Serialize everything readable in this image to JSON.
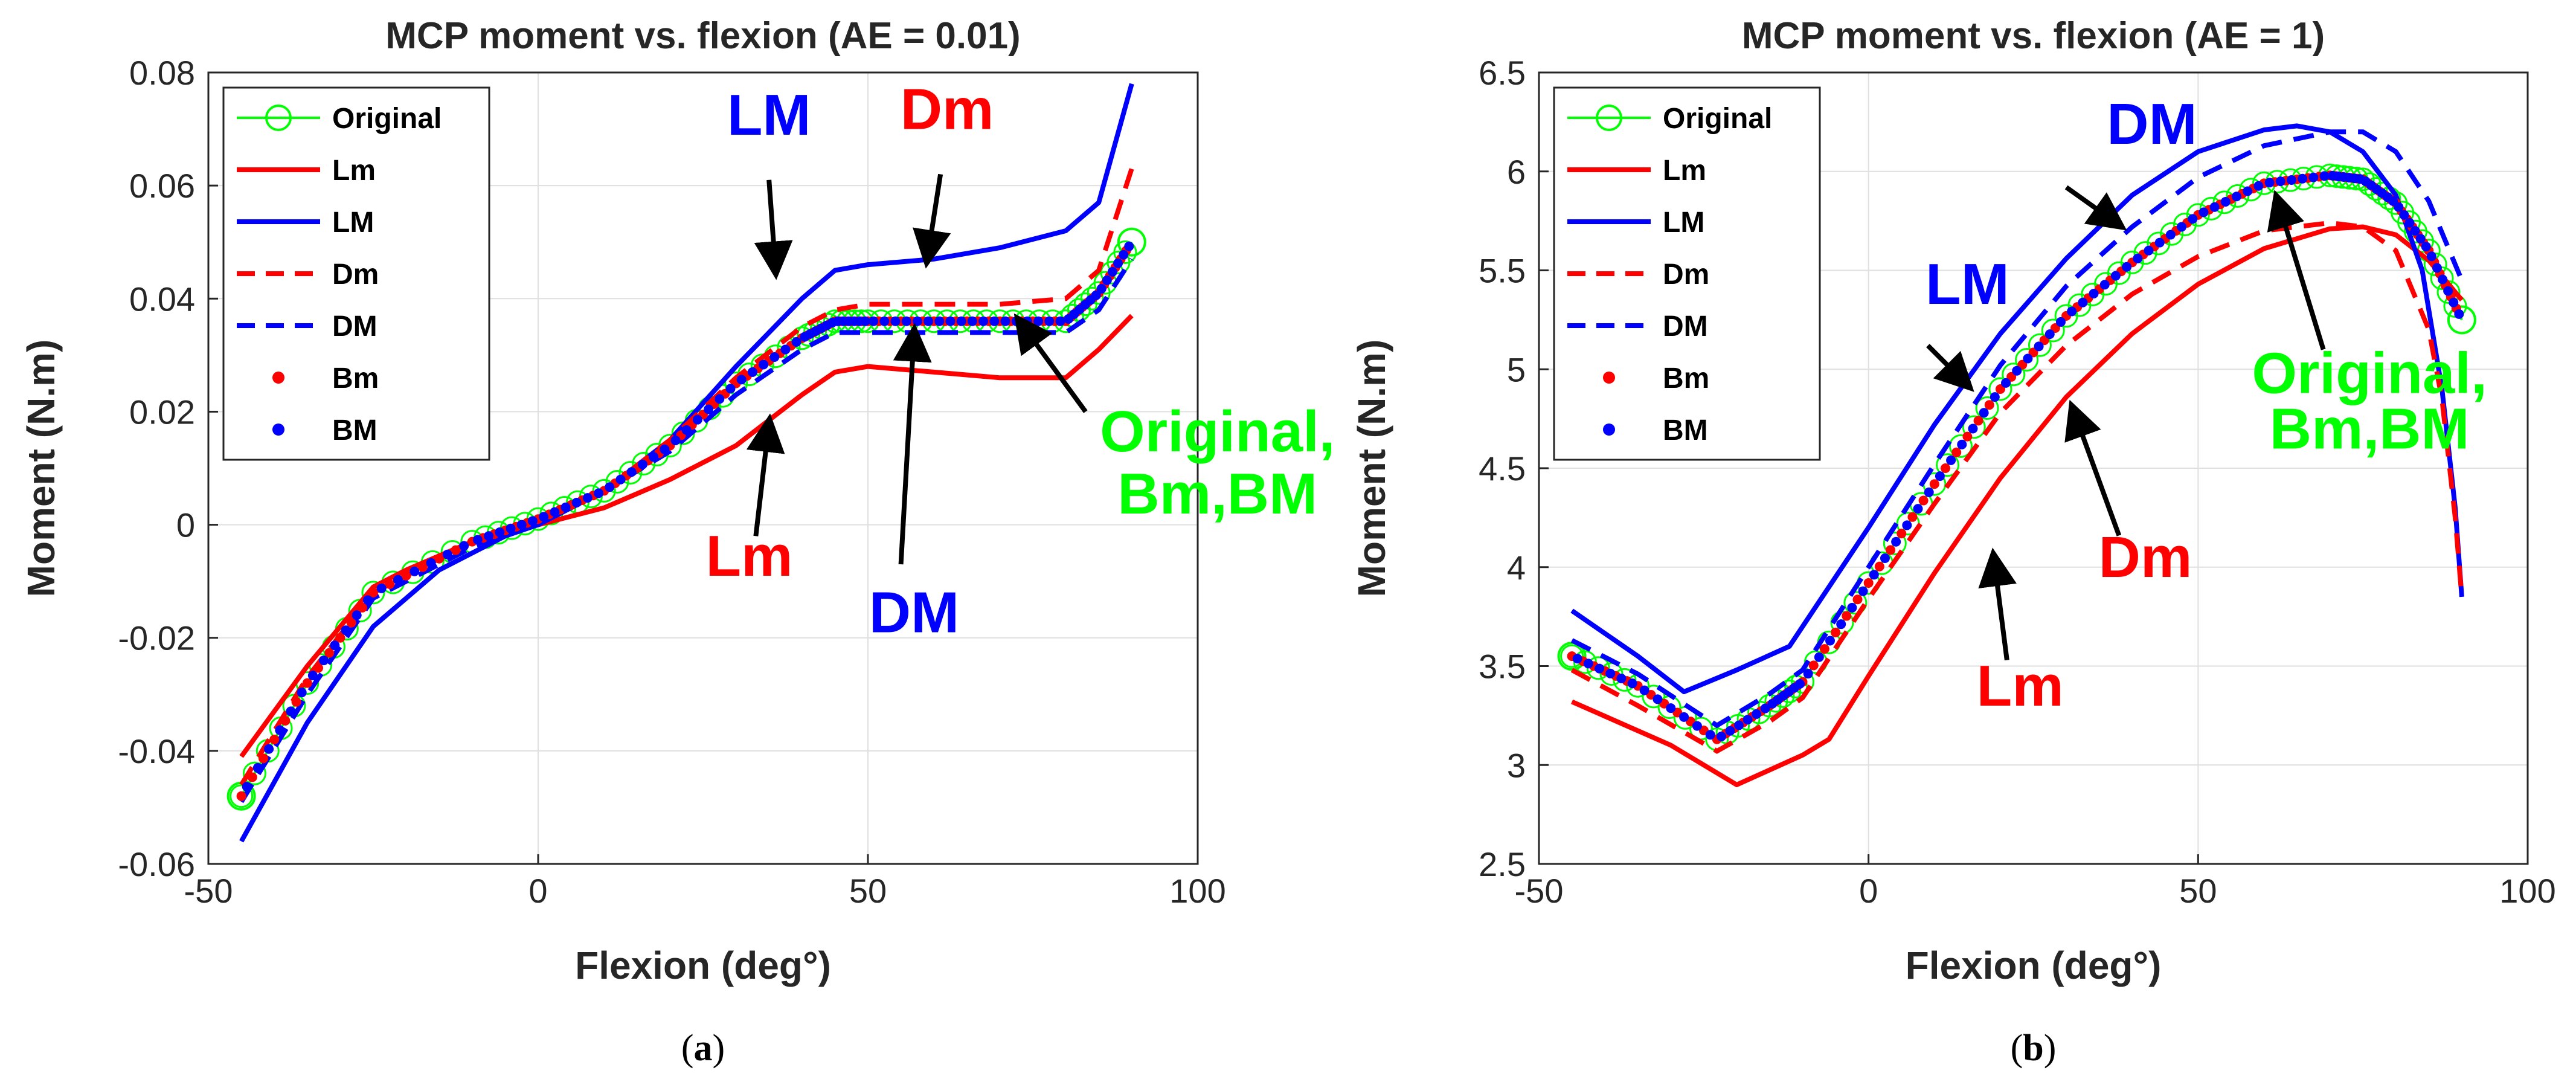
{
  "chart_data": [
    {
      "type": "line",
      "title": "MCP moment vs. flexion (AE = 0.01)",
      "xlabel": "Flexion (deg°)",
      "ylabel": "Moment (N.m)",
      "xlim": [
        -50,
        100
      ],
      "ylim": [
        -0.06,
        0.08
      ],
      "xticks": [
        -50,
        0,
        50,
        100
      ],
      "xtick_labels": [
        "-50",
        "0",
        "50",
        "100"
      ],
      "yticks": [
        -0.06,
        -0.04,
        -0.02,
        0,
        0.02,
        0.04,
        0.06,
        0.08
      ],
      "ytick_labels": [
        "-0.06",
        "-0.04",
        "-0.02",
        "0",
        "0.02",
        "0.04",
        "0.06",
        "0.08"
      ],
      "grid": true,
      "legend_position": "top-left",
      "caption": "a",
      "series": [
        {
          "name": "Original",
          "color": "#00ff00",
          "style": "circle-line",
          "x": [
            -45,
            -35,
            -25,
            -10,
            0,
            10,
            20,
            30,
            40,
            45,
            50,
            60,
            70,
            80,
            85,
            90
          ],
          "y": [
            -0.048,
            -0.028,
            -0.012,
            -0.003,
            0.001,
            0.006,
            0.014,
            0.025,
            0.033,
            0.036,
            0.036,
            0.036,
            0.036,
            0.036,
            0.041,
            0.05
          ]
        },
        {
          "name": "Lm",
          "color": "#ff0000",
          "style": "solid",
          "x": [
            -45,
            -35,
            -25,
            -20,
            -10,
            0,
            10,
            20,
            30,
            40,
            45,
            50,
            60,
            70,
            80,
            85,
            90
          ],
          "y": [
            -0.041,
            -0.025,
            -0.011,
            -0.008,
            -0.003,
            0,
            0.003,
            0.008,
            0.014,
            0.023,
            0.027,
            0.028,
            0.027,
            0.026,
            0.026,
            0.031,
            0.037
          ]
        },
        {
          "name": "LM",
          "color": "#0000ff",
          "style": "solid",
          "x": [
            -45,
            -35,
            -25,
            -15,
            -5,
            0,
            10,
            20,
            30,
            40,
            45,
            50,
            60,
            70,
            80,
            85,
            90
          ],
          "y": [
            -0.056,
            -0.035,
            -0.018,
            -0.008,
            -0.002,
            0,
            0.006,
            0.015,
            0.028,
            0.04,
            0.045,
            0.046,
            0.047,
            0.049,
            0.052,
            0.057,
            0.078
          ]
        },
        {
          "name": "Dm",
          "color": "#ff0000",
          "style": "dashed",
          "x": [
            -45,
            -35,
            -25,
            -10,
            0,
            10,
            20,
            30,
            40,
            45,
            50,
            60,
            70,
            80,
            85,
            90
          ],
          "y": [
            -0.046,
            -0.027,
            -0.012,
            -0.003,
            0.001,
            0.006,
            0.015,
            0.026,
            0.035,
            0.038,
            0.039,
            0.039,
            0.039,
            0.04,
            0.045,
            0.063
          ]
        },
        {
          "name": "DM",
          "color": "#0000ff",
          "style": "dashed",
          "x": [
            -45,
            -35,
            -25,
            -10,
            0,
            10,
            20,
            30,
            40,
            45,
            50,
            60,
            70,
            80,
            85,
            90
          ],
          "y": [
            -0.049,
            -0.03,
            -0.013,
            -0.004,
            0.001,
            0.006,
            0.013,
            0.023,
            0.031,
            0.034,
            0.034,
            0.034,
            0.034,
            0.034,
            0.038,
            0.047
          ]
        },
        {
          "name": "Bm",
          "color": "#ff0000",
          "style": "dots",
          "x": [
            -45,
            -35,
            -25,
            -10,
            0,
            10,
            20,
            30,
            40,
            45,
            50,
            60,
            70,
            80,
            85,
            90
          ],
          "y": [
            -0.048,
            -0.028,
            -0.012,
            -0.003,
            0.001,
            0.006,
            0.014,
            0.025,
            0.033,
            0.036,
            0.036,
            0.036,
            0.036,
            0.036,
            0.041,
            0.05
          ]
        },
        {
          "name": "BM",
          "color": "#0000ff",
          "style": "dots",
          "x": [
            -45,
            -35,
            -25,
            -10,
            0,
            10,
            20,
            30,
            40,
            45,
            50,
            60,
            70,
            80,
            85,
            90
          ],
          "y": [
            -0.048,
            -0.028,
            -0.012,
            -0.003,
            0.001,
            0.006,
            0.014,
            0.025,
            0.033,
            0.036,
            0.036,
            0.036,
            0.036,
            0.036,
            0.041,
            0.05
          ]
        }
      ],
      "annotations": [
        {
          "text": "LM",
          "color": "#0000ff",
          "text_at": [
            35,
            0.069
          ],
          "arrow_from": [
            35,
            0.061
          ],
          "arrow_to": [
            36,
            0.045
          ]
        },
        {
          "text": "Dm",
          "color": "#ff0000",
          "text_at": [
            62,
            0.07
          ],
          "arrow_from": [
            61,
            0.062
          ],
          "arrow_to": [
            59,
            0.047
          ]
        },
        {
          "text": "Lm",
          "color": "#ff0000",
          "text_at": [
            32,
            -0.009
          ],
          "arrow_from": [
            33,
            -0.002
          ],
          "arrow_to": [
            35,
            0.018
          ]
        },
        {
          "text": "DM",
          "color": "#0000ff",
          "text_at": [
            57,
            -0.019
          ],
          "arrow_from": [
            55,
            -0.007
          ],
          "arrow_to": [
            57,
            0.034
          ]
        },
        {
          "text": "Original,",
          "color": "#00ff00",
          "text_at": [
            103,
            0.013
          ],
          "arrow_from": [
            83,
            0.02
          ],
          "arrow_to": [
            73,
            0.036
          ]
        },
        {
          "text": "Bm,BM",
          "color": "#00ff00",
          "text_at": [
            103,
            0.002
          ]
        }
      ]
    },
    {
      "type": "line",
      "title": "MCP moment vs. flexion (AE = 1)",
      "xlabel": "Flexion (deg°)",
      "ylabel": "Moment (N.m)",
      "xlim": [
        -50,
        100
      ],
      "ylim": [
        2.5,
        6.5
      ],
      "xticks": [
        -50,
        0,
        50,
        100
      ],
      "xtick_labels": [
        "-50",
        "0",
        "50",
        "100"
      ],
      "yticks": [
        2.5,
        3,
        3.5,
        4,
        4.5,
        5,
        5.5,
        6,
        6.5
      ],
      "ytick_labels": [
        "2.5",
        "3",
        "3.5",
        "4",
        "4.5",
        "5",
        "5.5",
        "6",
        "6.5"
      ],
      "grid": true,
      "legend_position": "top-left",
      "caption": "b",
      "series": [
        {
          "name": "Original",
          "color": "#00ff00",
          "style": "circle-line",
          "x": [
            -45,
            -35,
            -23,
            -15,
            -10,
            0,
            10,
            20,
            30,
            40,
            50,
            60,
            70,
            75,
            80,
            85,
            90
          ],
          "y": [
            3.55,
            3.4,
            3.13,
            3.3,
            3.42,
            3.92,
            4.42,
            4.9,
            5.27,
            5.54,
            5.78,
            5.94,
            5.98,
            5.96,
            5.84,
            5.6,
            5.25
          ]
        },
        {
          "name": "Lm",
          "color": "#ff0000",
          "style": "solid",
          "x": [
            -45,
            -30,
            -20,
            -10,
            -6,
            0,
            10,
            20,
            30,
            40,
            50,
            60,
            70,
            75,
            80,
            85,
            90
          ],
          "y": [
            3.32,
            3.1,
            2.9,
            3.05,
            3.13,
            3.45,
            3.97,
            4.45,
            4.86,
            5.18,
            5.43,
            5.61,
            5.71,
            5.72,
            5.68,
            5.55,
            5.35
          ]
        },
        {
          "name": "LM",
          "color": "#0000ff",
          "style": "solid",
          "x": [
            -45,
            -35,
            -28,
            -20,
            -12,
            -5,
            0,
            10,
            20,
            30,
            40,
            50,
            60,
            65,
            70,
            75,
            80,
            84,
            87,
            89,
            90
          ],
          "y": [
            3.78,
            3.55,
            3.37,
            3.48,
            3.6,
            3.95,
            4.2,
            4.72,
            5.18,
            5.56,
            5.88,
            6.1,
            6.21,
            6.23,
            6.2,
            6.1,
            5.88,
            5.5,
            4.9,
            4.3,
            3.85
          ]
        },
        {
          "name": "Dm",
          "color": "#ff0000",
          "style": "dashed",
          "x": [
            -45,
            -35,
            -23,
            -15,
            -10,
            0,
            10,
            20,
            30,
            40,
            50,
            60,
            70,
            75,
            80,
            85,
            87,
            89,
            90
          ],
          "y": [
            3.48,
            3.3,
            3.07,
            3.22,
            3.34,
            3.84,
            4.32,
            4.78,
            5.12,
            5.38,
            5.57,
            5.7,
            5.74,
            5.72,
            5.6,
            5.2,
            4.85,
            4.25,
            3.85
          ]
        },
        {
          "name": "DM",
          "color": "#0000ff",
          "style": "dashed",
          "x": [
            -45,
            -35,
            -23,
            -15,
            -10,
            0,
            10,
            20,
            30,
            40,
            50,
            60,
            70,
            75,
            80,
            85,
            90
          ],
          "y": [
            3.63,
            3.46,
            3.2,
            3.36,
            3.48,
            4.0,
            4.52,
            5.02,
            5.42,
            5.72,
            5.97,
            6.13,
            6.2,
            6.2,
            6.1,
            5.85,
            5.45
          ]
        },
        {
          "name": "Bm",
          "color": "#ff0000",
          "style": "dots",
          "x": [
            -45,
            -35,
            -23,
            -15,
            -10,
            0,
            10,
            20,
            30,
            40,
            50,
            60,
            70,
            75,
            80,
            85,
            90
          ],
          "y": [
            3.55,
            3.4,
            3.13,
            3.3,
            3.42,
            3.92,
            4.42,
            4.9,
            5.27,
            5.54,
            5.78,
            5.94,
            5.98,
            5.96,
            5.84,
            5.6,
            5.25
          ]
        },
        {
          "name": "BM",
          "color": "#0000ff",
          "style": "dots",
          "x": [
            -45,
            -35,
            -23,
            -15,
            -10,
            0,
            10,
            20,
            30,
            40,
            50,
            60,
            70,
            75,
            80,
            85,
            90
          ],
          "y": [
            3.55,
            3.4,
            3.13,
            3.3,
            3.42,
            3.92,
            4.42,
            4.9,
            5.27,
            5.54,
            5.78,
            5.94,
            5.98,
            5.96,
            5.84,
            5.6,
            5.25
          ]
        }
      ],
      "annotations": [
        {
          "text": "LM",
          "color": "#0000ff",
          "text_at": [
            15,
            5.33
          ],
          "arrow_from": [
            9,
            5.12
          ],
          "arrow_to": [
            15,
            4.92
          ]
        },
        {
          "text": "DM",
          "color": "#0000ff",
          "text_at": [
            43,
            6.14
          ],
          "arrow_from": [
            30,
            5.92
          ],
          "arrow_to": [
            38,
            5.73
          ]
        },
        {
          "text": "Dm",
          "color": "#ff0000",
          "text_at": [
            42,
            3.95
          ],
          "arrow_from": [
            38,
            4.16
          ],
          "arrow_to": [
            31,
            4.8
          ]
        },
        {
          "text": "Lm",
          "color": "#ff0000",
          "text_at": [
            23,
            3.3
          ],
          "arrow_from": [
            21,
            3.53
          ],
          "arrow_to": [
            19,
            4.05
          ]
        },
        {
          "text": "Original,",
          "color": "#00ff00",
          "text_at": [
            76,
            4.88
          ],
          "arrow_from": [
            69,
            5.1
          ],
          "arrow_to": [
            62,
            5.86
          ]
        },
        {
          "text": "Bm,BM",
          "color": "#00ff00",
          "text_at": [
            76,
            4.6
          ]
        }
      ]
    }
  ]
}
